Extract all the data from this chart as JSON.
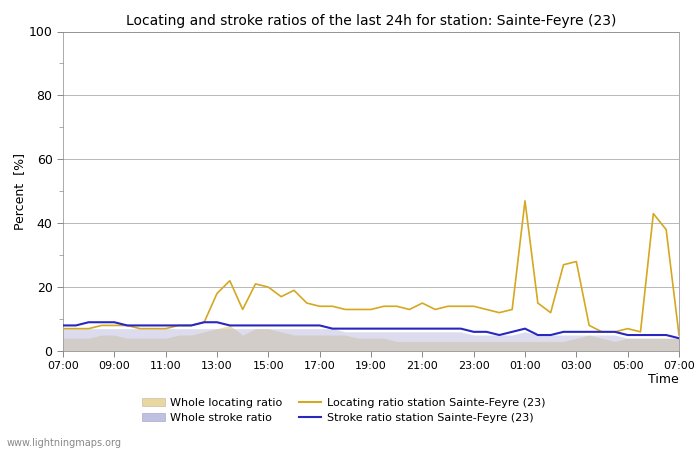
{
  "title": "Locating and stroke ratios of the last 24h for station: Sainte-Feyre (23)",
  "ylabel": "Percent  [%]",
  "xlabel": "Time",
  "xlim": [
    0,
    24
  ],
  "ylim": [
    0,
    100
  ],
  "yticks": [
    0,
    20,
    40,
    60,
    80,
    100
  ],
  "xtick_labels": [
    "07:00",
    "09:00",
    "11:00",
    "13:00",
    "15:00",
    "17:00",
    "19:00",
    "21:00",
    "23:00",
    "01:00",
    "03:00",
    "05:00",
    "07:00"
  ],
  "watermark": "www.lightningmaps.org",
  "locating_fill_color": "#e8d8a0",
  "stroke_fill_color": "#c0c0e0",
  "locating_line_color": "#d4a820",
  "stroke_line_color": "#2828c0",
  "legend_labels": [
    "Whole locating ratio",
    "Locating ratio station Sainte-Feyre (23)",
    "Whole stroke ratio",
    "Stroke ratio station Sainte-Feyre (23)"
  ],
  "whole_locating": [
    4,
    4,
    4,
    5,
    5,
    4,
    4,
    4,
    4,
    5,
    5,
    6,
    7,
    8,
    5,
    7,
    7,
    6,
    5,
    5,
    5,
    5,
    5,
    4,
    4,
    4,
    3,
    3,
    3,
    3,
    3,
    3,
    3,
    3,
    3,
    3,
    3,
    3,
    3,
    3,
    4,
    5,
    4,
    3,
    4,
    4,
    4,
    4,
    4
  ],
  "station_locating": [
    7,
    7,
    7,
    8,
    8,
    8,
    7,
    7,
    7,
    8,
    8,
    9,
    18,
    22,
    13,
    21,
    20,
    17,
    19,
    15,
    14,
    14,
    13,
    13,
    13,
    14,
    14,
    13,
    15,
    13,
    14,
    14,
    14,
    13,
    12,
    13,
    47,
    15,
    12,
    27,
    28,
    8,
    6,
    6,
    7,
    6,
    43,
    38,
    5
  ],
  "whole_stroke": [
    7,
    7,
    7,
    7,
    7,
    7,
    7,
    7,
    7,
    7,
    7,
    7,
    7,
    7,
    7,
    7,
    7,
    7,
    7,
    7,
    7,
    7,
    6,
    6,
    6,
    6,
    6,
    6,
    6,
    6,
    6,
    6,
    5,
    5,
    5,
    5,
    6,
    5,
    5,
    5,
    5,
    5,
    5,
    5,
    4,
    4,
    4,
    4,
    4
  ],
  "station_stroke": [
    8,
    8,
    9,
    9,
    9,
    8,
    8,
    8,
    8,
    8,
    8,
    9,
    9,
    8,
    8,
    8,
    8,
    8,
    8,
    8,
    8,
    7,
    7,
    7,
    7,
    7,
    7,
    7,
    7,
    7,
    7,
    7,
    6,
    6,
    5,
    6,
    7,
    5,
    5,
    6,
    6,
    6,
    6,
    6,
    5,
    5,
    5,
    5,
    4
  ]
}
